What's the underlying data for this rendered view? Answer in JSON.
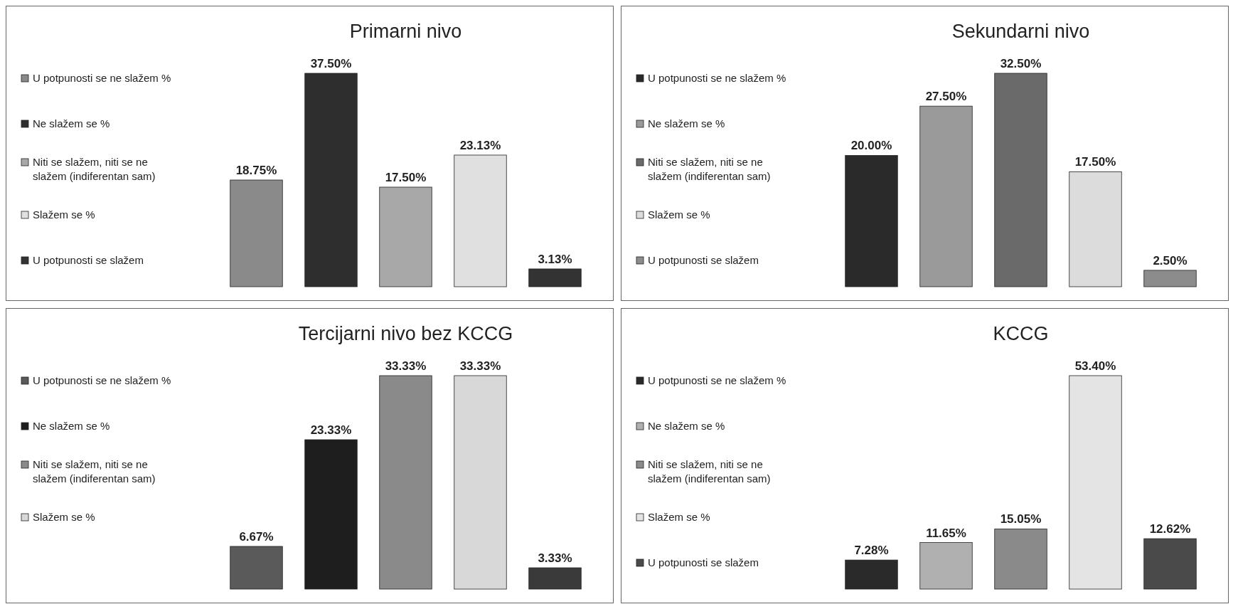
{
  "chart_data": [
    {
      "type": "bar",
      "title": "Primarni nivo",
      "categories": [
        null,
        null,
        null,
        null,
        null
      ],
      "stacked": true,
      "legend": "left",
      "series": [
        {
          "name": "U potpunosti se ne slažem %",
          "color": "#8a8a8a",
          "values": [
            18.75,
            null,
            null,
            null,
            null
          ],
          "value_labels": [
            "18.75%",
            null,
            null,
            null,
            null
          ]
        },
        {
          "name": "Ne slažem se %",
          "color": "#2e2e2e",
          "values": [
            null,
            37.5,
            null,
            null,
            null
          ],
          "value_labels": [
            null,
            "37.50%",
            null,
            null,
            null
          ]
        },
        {
          "name": "Niti se slažem, niti se ne slažem (indiferentan sam)",
          "color": "#a8a8a8",
          "values": [
            null,
            null,
            17.5,
            null,
            null
          ],
          "value_labels": [
            null,
            null,
            "17.50%",
            null,
            null
          ]
        },
        {
          "name": "Slažem se %",
          "color": "#e0e0e0",
          "values": [
            null,
            null,
            null,
            23.13,
            null
          ],
          "value_labels": [
            null,
            null,
            null,
            "23.13%",
            null
          ]
        },
        {
          "name": "U potpunosti se slažem",
          "color": "#333333",
          "values": [
            null,
            null,
            null,
            null,
            3.13
          ],
          "value_labels": [
            null,
            null,
            null,
            null,
            "3.13%"
          ]
        }
      ]
    },
    {
      "type": "bar",
      "title": "Sekundarni nivo",
      "categories": [
        null,
        null,
        null,
        null,
        null
      ],
      "stacked": true,
      "legend": "left",
      "series": [
        {
          "name": "U potpunosti se ne slažem %",
          "color": "#2a2a2a",
          "values": [
            20.0,
            null,
            null,
            null,
            null
          ],
          "value_labels": [
            "20.00%",
            null,
            null,
            null,
            null
          ]
        },
        {
          "name": "Ne slažem se %",
          "color": "#9a9a9a",
          "values": [
            null,
            27.5,
            null,
            null,
            null
          ],
          "value_labels": [
            null,
            "27.50%",
            null,
            null,
            null
          ]
        },
        {
          "name": "Niti se slažem, niti se ne slažem (indiferentan sam)",
          "color": "#6a6a6a",
          "values": [
            null,
            null,
            32.5,
            null,
            null
          ],
          "value_labels": [
            null,
            null,
            "32.50%",
            null,
            null
          ]
        },
        {
          "name": "Slažem se %",
          "color": "#dcdcdc",
          "values": [
            null,
            null,
            null,
            17.5,
            null
          ],
          "value_labels": [
            null,
            null,
            null,
            "17.50%",
            null
          ]
        },
        {
          "name": "U potpunosti se slažem",
          "color": "#8c8c8c",
          "values": [
            null,
            null,
            null,
            null,
            2.5
          ],
          "value_labels": [
            null,
            null,
            null,
            null,
            "2.50%"
          ]
        }
      ]
    },
    {
      "type": "bar",
      "title": "Tercijarni nivo bez KCCG",
      "categories": [
        null,
        null,
        null,
        null,
        null
      ],
      "stacked": true,
      "legend": "left",
      "series": [
        {
          "name": "U potpunosti se ne slažem %",
          "color": "#5a5a5a",
          "values": [
            6.67,
            null,
            null,
            null,
            null
          ],
          "value_labels": [
            "6.67%",
            null,
            null,
            null,
            null
          ]
        },
        {
          "name": "Ne slažem se %",
          "color": "#1e1e1e",
          "values": [
            null,
            23.33,
            null,
            null,
            null
          ],
          "value_labels": [
            null,
            "23.33%",
            null,
            null,
            null
          ]
        },
        {
          "name": "Niti se slažem, niti se ne slažem (indiferentan sam)",
          "color": "#8a8a8a",
          "values": [
            null,
            null,
            33.33,
            null,
            null
          ],
          "value_labels": [
            null,
            null,
            "33.33%",
            null,
            null
          ]
        },
        {
          "name": "Slažem se %",
          "color": "#d8d8d8",
          "values": [
            null,
            null,
            null,
            33.33,
            null
          ],
          "value_labels": [
            null,
            null,
            null,
            "33.33%",
            null
          ]
        },
        {
          "color": "#3a3a3a",
          "values": [
            null,
            null,
            null,
            null,
            3.33
          ],
          "value_labels": [
            null,
            null,
            null,
            null,
            "3.33%"
          ]
        }
      ]
    },
    {
      "type": "bar",
      "title": "KCCG",
      "categories": [
        null,
        null,
        null,
        null,
        null
      ],
      "stacked": true,
      "legend": "left",
      "series": [
        {
          "name": "U potpunosti se ne slažem %",
          "color": "#2a2a2a",
          "values": [
            7.28,
            null,
            null,
            null,
            null
          ],
          "value_labels": [
            "7.28%",
            null,
            null,
            null,
            null
          ]
        },
        {
          "name": "Ne slažem se %",
          "color": "#b0b0b0",
          "values": [
            null,
            11.65,
            null,
            null,
            null
          ],
          "value_labels": [
            null,
            "11.65%",
            null,
            null,
            null
          ]
        },
        {
          "name": "Niti se slažem, niti se ne slažem (indiferentan sam)",
          "color": "#8a8a8a",
          "values": [
            null,
            null,
            15.05,
            null,
            null
          ],
          "value_labels": [
            null,
            null,
            "15.05%",
            null,
            null
          ]
        },
        {
          "name": "Slažem se %",
          "color": "#e4e4e4",
          "values": [
            null,
            null,
            null,
            53.4,
            null
          ],
          "value_labels": [
            null,
            null,
            null,
            "53.40%",
            null
          ]
        },
        {
          "name": "U potpunosti se slažem",
          "color": "#4a4a4a",
          "values": [
            null,
            null,
            null,
            null,
            12.62
          ],
          "value_labels": [
            null,
            null,
            null,
            null,
            "12.62%"
          ]
        }
      ]
    }
  ]
}
